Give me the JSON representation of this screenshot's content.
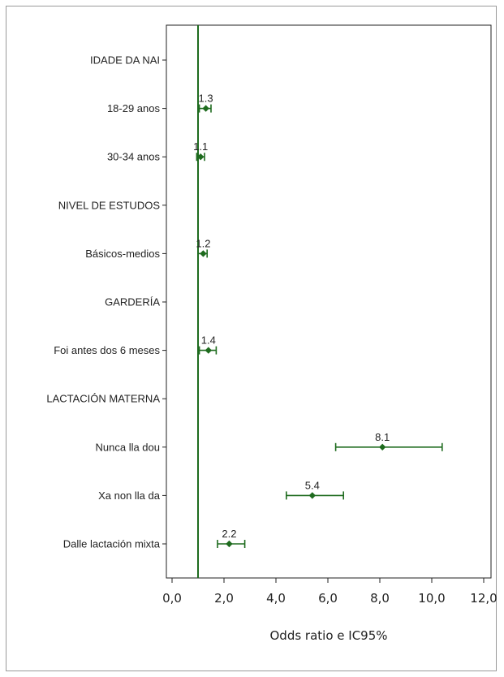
{
  "chart_data": {
    "type": "forest",
    "title": "",
    "xlabel": "Odds ratio e IC95%",
    "ylabel": "",
    "xlim": [
      0,
      12
    ],
    "x_ticks": [
      0,
      2,
      4,
      6,
      8,
      10,
      12
    ],
    "x_tick_labels": [
      "0,0",
      "2,0",
      "4,0",
      "6,0",
      "8,0",
      "10,0",
      "12,0"
    ],
    "reference_line": 1,
    "grid": false,
    "series_color": "#1e6b1e",
    "rows": [
      {
        "label": "IDADE DA NAI",
        "header": true
      },
      {
        "label": "18-29 anos",
        "or": 1.3,
        "low": 1.05,
        "high": 1.5,
        "value_label": "1.3"
      },
      {
        "label": "30-34 anos",
        "or": 1.1,
        "low": 0.95,
        "high": 1.25,
        "value_label": "1.1"
      },
      {
        "label": "NIVEL DE ESTUDOS",
        "header": true
      },
      {
        "label": "Básicos-medios",
        "or": 1.2,
        "low": 1.0,
        "high": 1.35,
        "value_label": "1.2"
      },
      {
        "label": "GARDERÍA",
        "header": true
      },
      {
        "label": "Foi antes dos 6 meses",
        "or": 1.4,
        "low": 1.05,
        "high": 1.7,
        "value_label": "1.4"
      },
      {
        "label": "LACTACIÓN MATERNA",
        "header": true
      },
      {
        "label": "Nunca lla dou",
        "or": 8.1,
        "low": 6.3,
        "high": 10.4,
        "value_label": "8.1"
      },
      {
        "label": "Xa non lla da",
        "or": 5.4,
        "low": 4.4,
        "high": 6.6,
        "value_label": "5.4"
      },
      {
        "label": "Dalle lactación mixta",
        "or": 2.2,
        "low": 1.75,
        "high": 2.8,
        "value_label": "2.2"
      }
    ]
  }
}
